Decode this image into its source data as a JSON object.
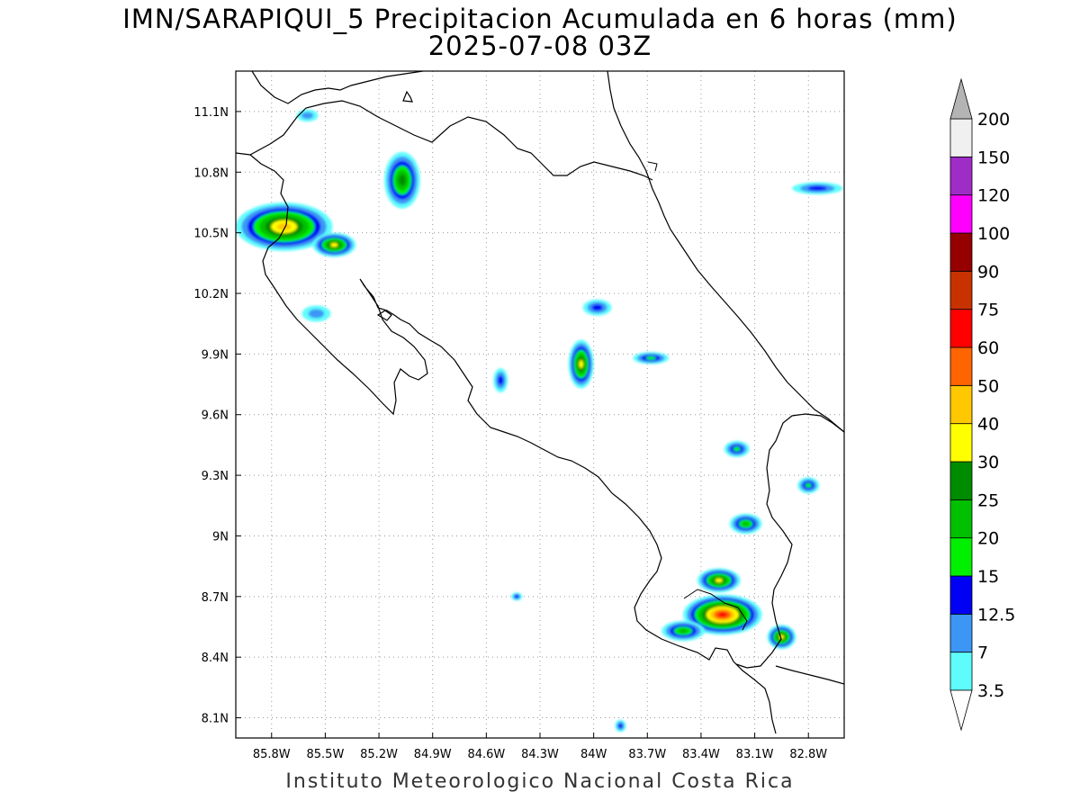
{
  "title_line1": "IMN/SARAPIQUI_5 Precipitacion Acumulada en 6 horas (mm)",
  "title_line2": "2025-07-08 03Z",
  "footer": "Instituto Meteorologico Nacional Costa Rica",
  "map": {
    "lon_range": [
      -86.0,
      -82.6
    ],
    "lat_range": [
      8.0,
      11.3
    ],
    "lat_ticks": [
      "11.1N",
      "10.8N",
      "10.5N",
      "10.2N",
      "9.9N",
      "9.6N",
      "9.3N",
      "9N",
      "8.7N",
      "8.4N",
      "8.1N"
    ],
    "lat_values": [
      11.1,
      10.8,
      10.5,
      10.2,
      9.9,
      9.6,
      9.3,
      9.0,
      8.7,
      8.4,
      8.1
    ],
    "lon_ticks": [
      "85.8W",
      "85.5W",
      "85.2W",
      "84.9W",
      "84.6W",
      "84.3W",
      "84W",
      "83.7W",
      "83.4W",
      "83.1W",
      "82.8W"
    ],
    "lon_values": [
      -85.8,
      -85.5,
      -85.2,
      -84.9,
      -84.6,
      -84.3,
      -84.0,
      -83.7,
      -83.4,
      -83.1,
      -82.8
    ],
    "grid": true
  },
  "colorbar": {
    "levels": [
      "3.5",
      "7",
      "12.5",
      "15",
      "20",
      "25",
      "30",
      "40",
      "50",
      "60",
      "75",
      "90",
      "100",
      "120",
      "150",
      "200"
    ],
    "colors": [
      "#5ffcfc",
      "#3c96f5",
      "#0000f5",
      "#00f000",
      "#00c000",
      "#008c00",
      "#ffff00",
      "#ffc800",
      "#ff6400",
      "#ff0000",
      "#c83200",
      "#960000",
      "#ff00ff",
      "#a02cc8",
      "#f0f0f0",
      "#b4b4b4"
    ]
  },
  "precip_cells": [
    {
      "lon": -85.73,
      "lat": 10.53,
      "rx": 0.27,
      "ry": 0.12,
      "max_level": 7
    },
    {
      "lon": -85.45,
      "lat": 10.44,
      "rx": 0.12,
      "ry": 0.06,
      "max_level": 6
    },
    {
      "lon": -85.07,
      "lat": 10.76,
      "rx": 0.1,
      "ry": 0.14,
      "max_level": 5
    },
    {
      "lon": -84.07,
      "lat": 9.85,
      "rx": 0.07,
      "ry": 0.12,
      "max_level": 6
    },
    {
      "lon": -85.55,
      "lat": 10.1,
      "rx": 0.08,
      "ry": 0.04,
      "max_level": 1
    },
    {
      "lon": -83.98,
      "lat": 10.13,
      "rx": 0.08,
      "ry": 0.04,
      "max_level": 2
    },
    {
      "lon": -83.68,
      "lat": 9.88,
      "rx": 0.1,
      "ry": 0.03,
      "max_level": 3
    },
    {
      "lon": -83.2,
      "lat": 9.43,
      "rx": 0.07,
      "ry": 0.04,
      "max_level": 3
    },
    {
      "lon": -83.15,
      "lat": 9.06,
      "rx": 0.09,
      "ry": 0.05,
      "max_level": 4
    },
    {
      "lon": -82.8,
      "lat": 9.25,
      "rx": 0.06,
      "ry": 0.04,
      "max_level": 3
    },
    {
      "lon": -83.28,
      "lat": 8.61,
      "rx": 0.22,
      "ry": 0.1,
      "max_level": 9
    },
    {
      "lon": -83.3,
      "lat": 8.78,
      "rx": 0.12,
      "ry": 0.06,
      "max_level": 6
    },
    {
      "lon": -82.95,
      "lat": 8.5,
      "rx": 0.08,
      "ry": 0.06,
      "max_level": 6
    },
    {
      "lon": -83.5,
      "lat": 8.53,
      "rx": 0.12,
      "ry": 0.05,
      "max_level": 4
    },
    {
      "lon": -82.75,
      "lat": 10.72,
      "rx": 0.14,
      "ry": 0.03,
      "max_level": 2
    },
    {
      "lon": -85.6,
      "lat": 11.08,
      "rx": 0.06,
      "ry": 0.03,
      "max_level": 1
    },
    {
      "lon": -83.85,
      "lat": 8.06,
      "rx": 0.03,
      "ry": 0.03,
      "max_level": 2
    },
    {
      "lon": -84.43,
      "lat": 8.7,
      "rx": 0.03,
      "ry": 0.02,
      "max_level": 2
    },
    {
      "lon": -84.52,
      "lat": 9.77,
      "rx": 0.04,
      "ry": 0.06,
      "max_level": 2
    }
  ]
}
